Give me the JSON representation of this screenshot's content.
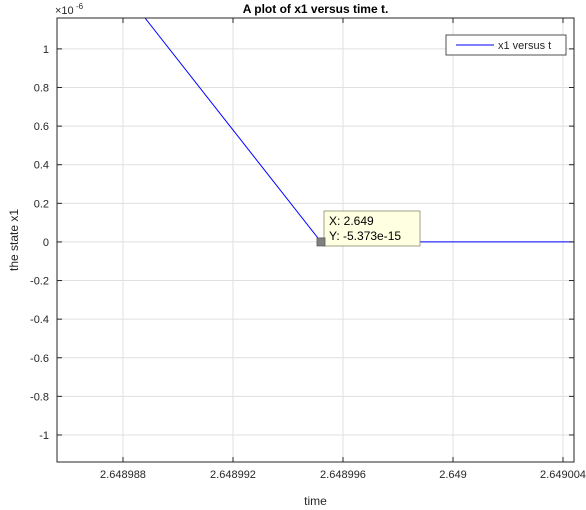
{
  "chart_data": {
    "type": "line",
    "title": "A plot of x1 versus time t.",
    "xlabel": "time",
    "ylabel": "the state x1",
    "y_exponent_label": "×10",
    "y_exponent_power": "-6",
    "y_scale": 1e-06,
    "xlim": [
      2.6489856,
      2.6490044
    ],
    "ylim": [
      -1.14,
      1.16
    ],
    "x_ticks": [
      2.648988,
      2.648992,
      2.648996,
      2.649,
      2.649004
    ],
    "x_tick_labels": [
      "2.648988",
      "2.648992",
      "2.648996",
      "2.649",
      "2.649004"
    ],
    "y_ticks": [
      -1,
      -0.8,
      -0.6,
      -0.4,
      -0.2,
      0,
      0.2,
      0.4,
      0.6,
      0.8,
      1
    ],
    "y_tick_labels": [
      "-1",
      "-0.8",
      "-0.6",
      "-0.4",
      "-0.2",
      "0",
      "0.2",
      "0.4",
      "0.6",
      "0.8",
      "1"
    ],
    "grid": true,
    "legend_position": "top-right",
    "series": [
      {
        "name": "x1 versus t",
        "color": "#0000ff",
        "x": [
          2.6489888,
          2.6489952,
          2.6490044
        ],
        "y": [
          1.16,
          0,
          0
        ]
      }
    ],
    "datatip": {
      "x": 2.6489952,
      "y": 0,
      "x_label": "X: 2.649",
      "y_label": "Y: -5.373e-15"
    }
  }
}
